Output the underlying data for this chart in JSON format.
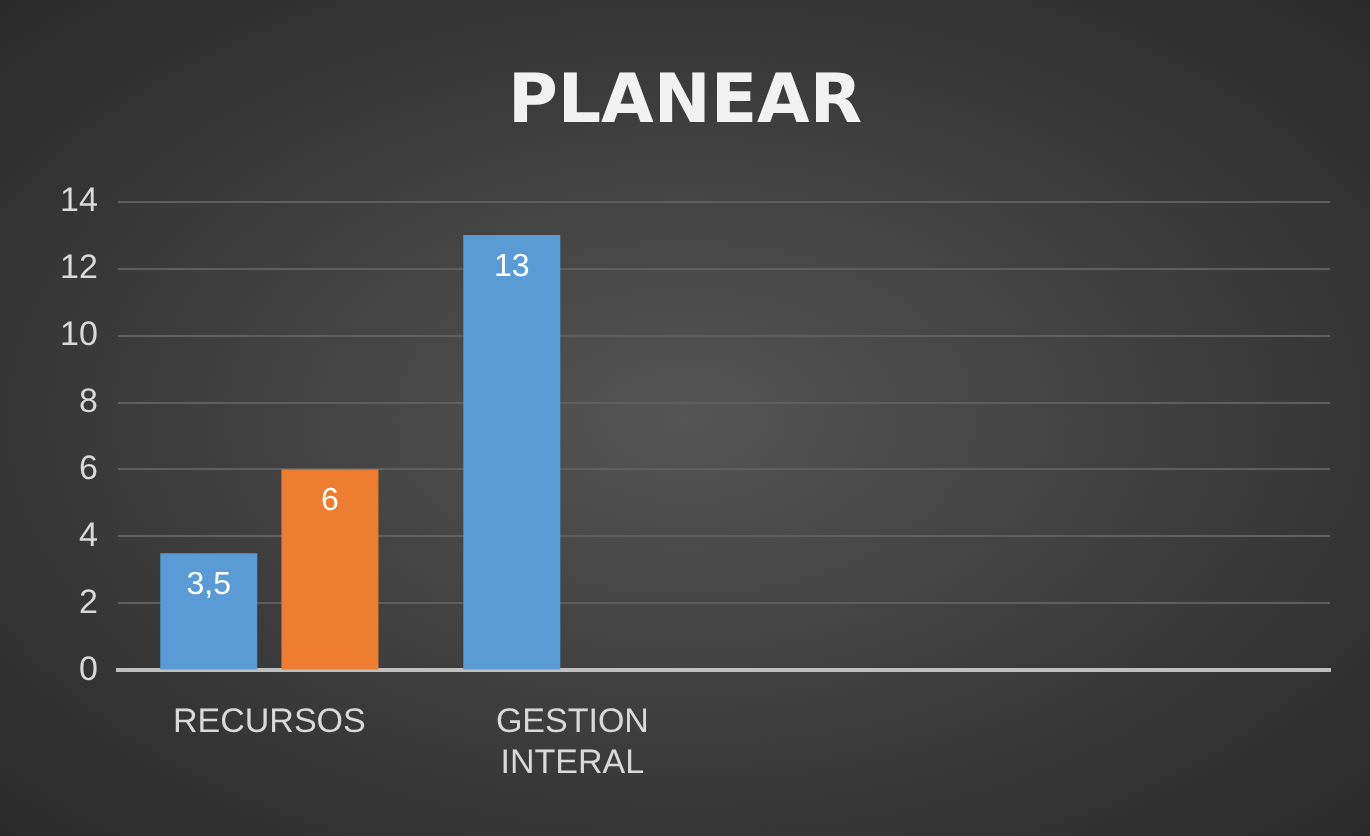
{
  "chart_data": {
    "type": "bar",
    "title": "PLANEAR",
    "categories": [
      "RECURSOS",
      "GESTION INTERAL",
      null,
      null
    ],
    "series": [
      {
        "color": "#5b9bd5",
        "values": [
          3.5,
          13,
          null,
          null
        ],
        "value_labels": [
          "3,5",
          "13",
          null,
          null
        ]
      },
      {
        "color": "#ed7d31",
        "values": [
          6,
          null,
          null,
          null
        ],
        "value_labels": [
          "6",
          null,
          null,
          null
        ]
      }
    ],
    "ylim": [
      0,
      14
    ],
    "yticks": [
      0,
      2,
      4,
      6,
      8,
      10,
      12,
      14
    ],
    "grid": "y",
    "legend": false
  }
}
